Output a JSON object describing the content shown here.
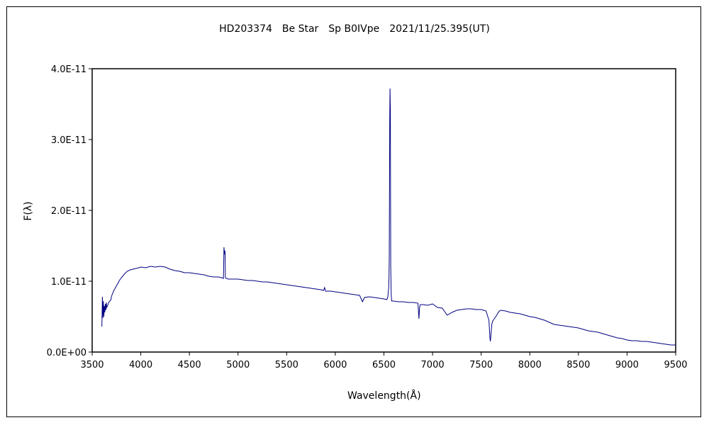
{
  "chart_data": {
    "type": "line",
    "title": "HD203374　Be Star　Sp B0IVpe　2021/11/25.395(UT)",
    "xlabel": "Wavelength(Å)",
    "ylabel": "F(λ)",
    "xlim": [
      3500,
      9500
    ],
    "ylim": [
      0,
      4e-11
    ],
    "x_ticks": [
      3500,
      4000,
      4500,
      5000,
      5500,
      6000,
      6500,
      7000,
      7500,
      8000,
      8500,
      9000,
      9500
    ],
    "x_tick_labels": [
      "3500",
      "4000",
      "4500",
      "5000",
      "5500",
      "6000",
      "6500",
      "7000",
      "7500",
      "8000",
      "8500",
      "9000",
      "9500"
    ],
    "y_ticks": [
      0,
      1e-11,
      2e-11,
      3e-11,
      4e-11
    ],
    "y_tick_labels": [
      "0.0E+00",
      "1.0E-11",
      "2.0E-11",
      "3.0E-11",
      "4.0E-11"
    ],
    "grid": false,
    "line_color": "#000080",
    "series": [
      {
        "x": [
          3600,
          3605,
          3610,
          3615,
          3620,
          3625,
          3630,
          3635,
          3640,
          3645,
          3650,
          3660,
          3670,
          3680,
          3690,
          3700,
          3720,
          3740,
          3760,
          3780,
          3800,
          3830,
          3860,
          3890,
          3920,
          3950,
          3980,
          4000,
          4050,
          4100,
          4150,
          4200,
          4250,
          4300,
          4350,
          4400,
          4450,
          4500,
          4550,
          4600,
          4650,
          4700,
          4750,
          4800,
          4830,
          4850,
          4855,
          4861,
          4866,
          4870,
          4880,
          4900,
          4950,
          5000,
          5050,
          5100,
          5150,
          5200,
          5250,
          5300,
          5350,
          5400,
          5450,
          5500,
          5550,
          5600,
          5650,
          5700,
          5750,
          5800,
          5850,
          5880,
          5890,
          5900,
          5950,
          6000,
          6050,
          6100,
          6150,
          6200,
          6250,
          6280,
          6300,
          6350,
          6400,
          6450,
          6500,
          6530,
          6540,
          6550,
          6555,
          6560,
          6563,
          6566,
          6570,
          6575,
          6580,
          6600,
          6650,
          6700,
          6750,
          6800,
          6850,
          6860,
          6866,
          6870,
          6875,
          6880,
          6900,
          6950,
          7000,
          7050,
          7100,
          7150,
          7200,
          7250,
          7300,
          7350,
          7400,
          7450,
          7500,
          7550,
          7580,
          7590,
          7595,
          7600,
          7605,
          7610,
          7620,
          7640,
          7660,
          7680,
          7700,
          7750,
          7800,
          7850,
          7900,
          7950,
          8000,
          8050,
          8100,
          8150,
          8200,
          8250,
          8300,
          8350,
          8400,
          8450,
          8500,
          8550,
          8600,
          8650,
          8700,
          8750,
          8800,
          8850,
          8900,
          8950,
          9000,
          9050,
          9100,
          9150,
          9200,
          9250,
          9300,
          9350,
          9400,
          9450,
          9500
        ],
        "y": [
          3.6e-12,
          7.8e-12,
          4.8e-12,
          7.2e-12,
          5e-12,
          6.5e-12,
          5.6e-12,
          6.8e-12,
          5.9e-12,
          7e-12,
          6.3e-12,
          6.6e-12,
          7e-12,
          7.2e-12,
          7.3e-12,
          7.9e-12,
          8.6e-12,
          9.1e-12,
          9.6e-12,
          1.01e-11,
          1.05e-11,
          1.1e-11,
          1.14e-11,
          1.16e-11,
          1.17e-11,
          1.18e-11,
          1.19e-11,
          1.2e-11,
          1.19e-11,
          1.21e-11,
          1.2e-11,
          1.21e-11,
          1.2e-11,
          1.17e-11,
          1.15e-11,
          1.14e-11,
          1.12e-11,
          1.12e-11,
          1.11e-11,
          1.1e-11,
          1.09e-11,
          1.07e-11,
          1.06e-11,
          1.06e-11,
          1.05e-11,
          1.04e-11,
          1.48e-11,
          1.38e-11,
          1.43e-11,
          1.05e-11,
          1.04e-11,
          1.03e-11,
          1.03e-11,
          1.03e-11,
          1.02e-11,
          1.01e-11,
          1.01e-11,
          1e-11,
          9.9e-12,
          9.9e-12,
          9.8e-12,
          9.7e-12,
          9.6e-12,
          9.5e-12,
          9.4e-12,
          9.3e-12,
          9.2e-12,
          9.1e-12,
          9e-12,
          8.9e-12,
          8.8e-12,
          8.7e-12,
          9.1e-12,
          8.6e-12,
          8.6e-12,
          8.5e-12,
          8.4e-12,
          8.3e-12,
          8.2e-12,
          8.1e-12,
          8e-12,
          7.1e-12,
          7.7e-12,
          7.8e-12,
          7.7e-12,
          7.6e-12,
          7.5e-12,
          7.4e-12,
          7.8e-12,
          9.2e-12,
          1.3e-11,
          3.28e-11,
          3.72e-11,
          3.4e-11,
          1.2e-11,
          8e-12,
          7.2e-12,
          7.2e-12,
          7.1e-12,
          7.1e-12,
          7e-12,
          7e-12,
          6.9e-12,
          4.7e-12,
          6.2e-12,
          6.6e-12,
          6.7e-12,
          6.7e-12,
          6.7e-12,
          6.6e-12,
          6.8e-12,
          6.3e-12,
          6.2e-12,
          5.2e-12,
          5.6e-12,
          5.9e-12,
          6e-12,
          6.1e-12,
          6.1e-12,
          6e-12,
          6e-12,
          5.8e-12,
          4.5e-12,
          2e-12,
          1.5e-12,
          2.4e-12,
          3.2e-12,
          4e-12,
          4.4e-12,
          4.8e-12,
          5.2e-12,
          5.7e-12,
          5.9e-12,
          5.8e-12,
          5.6e-12,
          5.5e-12,
          5.4e-12,
          5.2e-12,
          5e-12,
          4.9e-12,
          4.7e-12,
          4.5e-12,
          4.2e-12,
          3.9e-12,
          3.8e-12,
          3.7e-12,
          3.6e-12,
          3.5e-12,
          3.4e-12,
          3.2e-12,
          3e-12,
          2.9e-12,
          2.8e-12,
          2.6e-12,
          2.4e-12,
          2.2e-12,
          2e-12,
          1.9e-12,
          1.7e-12,
          1.6e-12,
          1.6e-12,
          1.5e-12,
          1.5e-12,
          1.4e-12,
          1.3e-12,
          1.2e-12,
          1.1e-12,
          1e-12,
          1e-12
        ]
      }
    ]
  }
}
